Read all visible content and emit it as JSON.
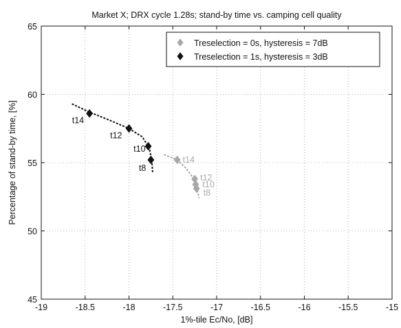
{
  "chart_data": {
    "type": "scatter",
    "title": "Market X; DRX cycle 1.28s; stand-by time vs. camping cell quality",
    "xlabel": "1%-tile Ec/No, [dB]",
    "ylabel": "Percentage of stand-by time, [%]",
    "xlim": [
      -19,
      -15
    ],
    "ylim": [
      45,
      65
    ],
    "xticks": [
      -19,
      -18.5,
      -18,
      -17.5,
      -17,
      -16.5,
      -16,
      -15.5,
      -15
    ],
    "xtick_labels": [
      "-19",
      "-18.5",
      "-18",
      "-17.5",
      "-17",
      "-16.5",
      "-16",
      "-15.5",
      "-15"
    ],
    "yticks": [
      45,
      50,
      55,
      60,
      65
    ],
    "ytick_labels": [
      "45",
      "50",
      "55",
      "60",
      "65"
    ],
    "grid": true,
    "legend_position": "top-right",
    "series": [
      {
        "name": "Treselection = 0s, hysteresis = 7dB",
        "color": "#a8a8a8",
        "marker": "diamond",
        "points": [
          {
            "x": -17.45,
            "y": 55.2,
            "label": "t14"
          },
          {
            "x": -17.25,
            "y": 53.8,
            "label": "t12"
          },
          {
            "x": -17.24,
            "y": 53.4,
            "label": "t10"
          },
          {
            "x": -17.23,
            "y": 53.1,
            "label": "t8"
          }
        ],
        "trend": [
          [
            -17.6,
            55.6
          ],
          [
            -17.45,
            55.2
          ],
          [
            -17.35,
            54.6
          ],
          [
            -17.27,
            53.9
          ],
          [
            -17.23,
            53.2
          ],
          [
            -17.2,
            52.4
          ]
        ]
      },
      {
        "name": "Treselection = 1s, hysteresis = 3dB",
        "color": "#111111",
        "marker": "diamond",
        "points": [
          {
            "x": -18.45,
            "y": 58.6,
            "label": "t14"
          },
          {
            "x": -18.0,
            "y": 57.5,
            "label": "t12"
          },
          {
            "x": -17.78,
            "y": 56.2,
            "label": "t10"
          },
          {
            "x": -17.75,
            "y": 55.2,
            "label": "t8"
          }
        ],
        "trend": [
          [
            -18.65,
            59.3
          ],
          [
            -18.45,
            58.7
          ],
          [
            -18.2,
            58.05
          ],
          [
            -18.0,
            57.5
          ],
          [
            -17.85,
            56.9
          ],
          [
            -17.77,
            56.1
          ],
          [
            -17.74,
            55.2
          ],
          [
            -17.73,
            54.3
          ]
        ]
      }
    ]
  }
}
